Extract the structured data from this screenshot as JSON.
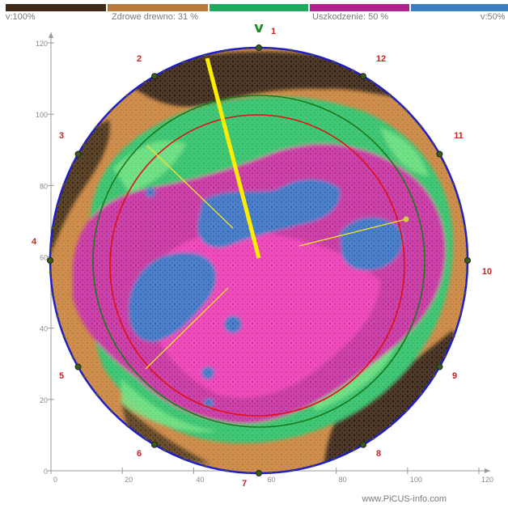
{
  "colorbar": {
    "left_label": "v:100%",
    "healthy_label": "Zdrowe drewno: 31 %",
    "damage_label": "Uszkodzenie: 50 %",
    "right_label": "v:50%",
    "segments": [
      {
        "name": "dark-brown",
        "color": "#3d2a17"
      },
      {
        "name": "light-brown",
        "color": "#b8793a"
      },
      {
        "name": "green",
        "color": "#1faa60"
      },
      {
        "name": "magenta",
        "color": "#b0238f"
      },
      {
        "name": "blue",
        "color": "#3d7fc4"
      }
    ]
  },
  "chart_data": {
    "type": "tomogram",
    "x_ticks": [
      "0",
      "20",
      "40",
      "60",
      "80",
      "100",
      "120"
    ],
    "y_ticks": [
      "0",
      "20",
      "40",
      "60",
      "80",
      "100",
      "120"
    ],
    "xlim": [
      0,
      120
    ],
    "ylim": [
      0,
      120
    ],
    "sensors": [
      "1",
      "2",
      "3",
      "4",
      "5",
      "6",
      "7",
      "8",
      "9",
      "10",
      "11",
      "12"
    ],
    "north_marker": "v",
    "colors": {
      "outline": "#2020c0",
      "ring_red": "#e01010",
      "ring_green": "#1a7a1a",
      "sensor_label": "#cc2222",
      "yellow": "#ffee00",
      "axis": "#999999"
    }
  },
  "footer": {
    "text": "www.PiCUS-info.com"
  }
}
